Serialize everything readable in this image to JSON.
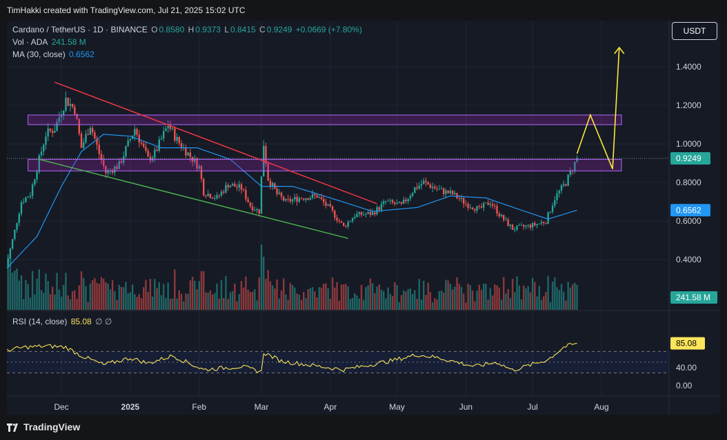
{
  "header": {
    "credit": "TimHakki created with TradingView.com, Jul 21, 2025 15:02 UTC"
  },
  "legend": {
    "symbol": "Cardano / TetherUS · 1D · BINANCE",
    "o_label": "O",
    "o": "0.8580",
    "h_label": "H",
    "h": "0.9373",
    "l_label": "L",
    "l": "0.8415",
    "c_label": "C",
    "c": "0.9249",
    "change": "+0.0669 (+7.80%)",
    "vol_label": "Vol · ADA",
    "vol": "241.58 M",
    "ma_label": "MA (30, close)",
    "ma": "0.6562",
    "rsi_label": "RSI (14, close)",
    "rsi": "85.08",
    "rsi_extra": "∅  ∅"
  },
  "currency_button": "USDT",
  "badges": {
    "price": "0.9249",
    "ma": "0.6562",
    "volume": "241.58 M",
    "rsi": "85.08"
  },
  "footer": {
    "brand": "TradingView"
  },
  "colors": {
    "up": "#26a69a",
    "down": "#ef5350",
    "ma": "#2196f3",
    "rsi": "#fbe55a",
    "zone": "#9c27b0",
    "resistance_line": "#f23645",
    "support_line": "#4caf50",
    "projection": "#ffeb3b"
  },
  "chart_data": [
    {
      "type": "candlestick",
      "symbol": "Cardano / TetherUS",
      "interval": "1D",
      "exchange": "BINANCE",
      "y_ticks": [
        0.4,
        0.6,
        0.8,
        1.0,
        1.2,
        1.4
      ],
      "y_tick_labels": [
        "0.4000",
        "0.6000",
        "0.8000",
        "1.0000",
        "1.2000",
        "1.4000"
      ],
      "x_tick_labels": [
        "Dec",
        "2025",
        "Feb",
        "Mar",
        "Apr",
        "May",
        "Jun",
        "Jul",
        "Aug"
      ],
      "x_tick_dates": [
        "2024-12-01",
        "2025-01-01",
        "2025-02-01",
        "2025-03-01",
        "2025-04-01",
        "2025-05-01",
        "2025-06-01",
        "2025-07-01",
        "2025-08-01"
      ],
      "last_price": 0.9249,
      "close_path": [
        [
          "2024-11-06",
          0.36
        ],
        [
          "2024-11-10",
          0.55
        ],
        [
          "2024-11-13",
          0.7
        ],
        [
          "2024-11-17",
          0.74
        ],
        [
          "2024-11-21",
          0.92
        ],
        [
          "2024-11-24",
          1.05
        ],
        [
          "2024-11-28",
          1.08
        ],
        [
          "2024-12-03",
          1.23
        ],
        [
          "2024-12-07",
          1.18
        ],
        [
          "2024-12-10",
          0.98
        ],
        [
          "2024-12-14",
          1.1
        ],
        [
          "2024-12-18",
          0.95
        ],
        [
          "2024-12-21",
          0.85
        ],
        [
          "2024-12-27",
          0.89
        ],
        [
          "2025-01-03",
          1.08
        ],
        [
          "2025-01-09",
          0.92
        ],
        [
          "2025-01-12",
          0.95
        ],
        [
          "2025-01-18",
          1.1
        ],
        [
          "2025-01-22",
          1.02
        ],
        [
          "2025-01-27",
          0.95
        ],
        [
          "2025-02-01",
          0.88
        ],
        [
          "2025-02-03",
          0.75
        ],
        [
          "2025-02-09",
          0.72
        ],
        [
          "2025-02-14",
          0.79
        ],
        [
          "2025-02-20",
          0.77
        ],
        [
          "2025-02-24",
          0.68
        ],
        [
          "2025-02-28",
          0.65
        ],
        [
          "2025-03-02",
          1.0
        ],
        [
          "2025-03-04",
          0.82
        ],
        [
          "2025-03-08",
          0.74
        ],
        [
          "2025-03-12",
          0.7
        ],
        [
          "2025-03-18",
          0.72
        ],
        [
          "2025-03-26",
          0.73
        ],
        [
          "2025-04-01",
          0.66
        ],
        [
          "2025-04-07",
          0.57
        ],
        [
          "2025-04-12",
          0.63
        ],
        [
          "2025-04-20",
          0.64
        ],
        [
          "2025-04-26",
          0.7
        ],
        [
          "2025-05-03",
          0.68
        ],
        [
          "2025-05-09",
          0.77
        ],
        [
          "2025-05-13",
          0.8
        ],
        [
          "2025-05-20",
          0.76
        ],
        [
          "2025-05-26",
          0.74
        ],
        [
          "2025-06-01",
          0.69
        ],
        [
          "2025-06-07",
          0.66
        ],
        [
          "2025-06-12",
          0.7
        ],
        [
          "2025-06-17",
          0.62
        ],
        [
          "2025-06-22",
          0.56
        ],
        [
          "2025-06-27",
          0.57
        ],
        [
          "2025-07-02",
          0.58
        ],
        [
          "2025-07-07",
          0.6
        ],
        [
          "2025-07-11",
          0.72
        ],
        [
          "2025-07-16",
          0.8
        ],
        [
          "2025-07-21",
          0.9249
        ]
      ],
      "ma_30_path": [
        [
          "2024-11-06",
          0.35
        ],
        [
          "2024-11-20",
          0.52
        ],
        [
          "2024-12-01",
          0.78
        ],
        [
          "2024-12-10",
          0.96
        ],
        [
          "2024-12-20",
          1.05
        ],
        [
          "2025-01-01",
          1.04
        ],
        [
          "2025-01-15",
          0.98
        ],
        [
          "2025-01-31",
          0.98
        ],
        [
          "2025-02-15",
          0.92
        ],
        [
          "2025-03-01",
          0.78
        ],
        [
          "2025-03-15",
          0.78
        ],
        [
          "2025-04-01",
          0.72
        ],
        [
          "2025-04-20",
          0.65
        ],
        [
          "2025-05-10",
          0.67
        ],
        [
          "2025-05-25",
          0.73
        ],
        [
          "2025-06-10",
          0.72
        ],
        [
          "2025-06-25",
          0.66
        ],
        [
          "2025-07-08",
          0.61
        ],
        [
          "2025-07-21",
          0.6562
        ]
      ],
      "annotations": {
        "resistance_zone_upper": [
          1.1,
          1.15
        ],
        "resistance_zone_lower": [
          0.86,
          0.92
        ],
        "descending_resistance": [
          [
            "2024-11-28",
            1.32
          ],
          [
            "2025-04-22",
            0.69
          ]
        ],
        "descending_support": [
          [
            "2024-11-21",
            0.92
          ],
          [
            "2025-04-09",
            0.51
          ]
        ],
        "projection": [
          [
            "2025-07-21",
            0.95
          ],
          [
            "2025-07-27",
            1.15
          ],
          [
            "2025-08-06",
            0.87
          ],
          [
            "2025-08-09",
            1.5
          ]
        ]
      }
    },
    {
      "type": "bar",
      "name": "Vol · ADA",
      "last_value": "241.58 M"
    },
    {
      "type": "line",
      "name": "RSI (14, close)",
      "last_value": 85.08,
      "y_tick_labels": [
        "0.00",
        "40.00"
      ],
      "levels": [
        30,
        50,
        70
      ],
      "path": [
        [
          "2024-11-06",
          72
        ],
        [
          "2024-11-15",
          78
        ],
        [
          "2024-11-25",
          80
        ],
        [
          "2024-12-03",
          78
        ],
        [
          "2024-12-10",
          62
        ],
        [
          "2024-12-20",
          45
        ],
        [
          "2025-01-01",
          58
        ],
        [
          "2025-01-09",
          48
        ],
        [
          "2025-01-20",
          62
        ],
        [
          "2025-02-03",
          36
        ],
        [
          "2025-02-20",
          42
        ],
        [
          "2025-03-01",
          32
        ],
        [
          "2025-03-02",
          68
        ],
        [
          "2025-03-10",
          52
        ],
        [
          "2025-04-07",
          36
        ],
        [
          "2025-04-20",
          46
        ],
        [
          "2025-05-01",
          55
        ],
        [
          "2025-05-10",
          64
        ],
        [
          "2025-05-20",
          58
        ],
        [
          "2025-06-05",
          42
        ],
        [
          "2025-06-15",
          50
        ],
        [
          "2025-06-22",
          35
        ],
        [
          "2025-07-01",
          46
        ],
        [
          "2025-07-08",
          55
        ],
        [
          "2025-07-15",
          78
        ],
        [
          "2025-07-21",
          85.08
        ]
      ]
    }
  ]
}
